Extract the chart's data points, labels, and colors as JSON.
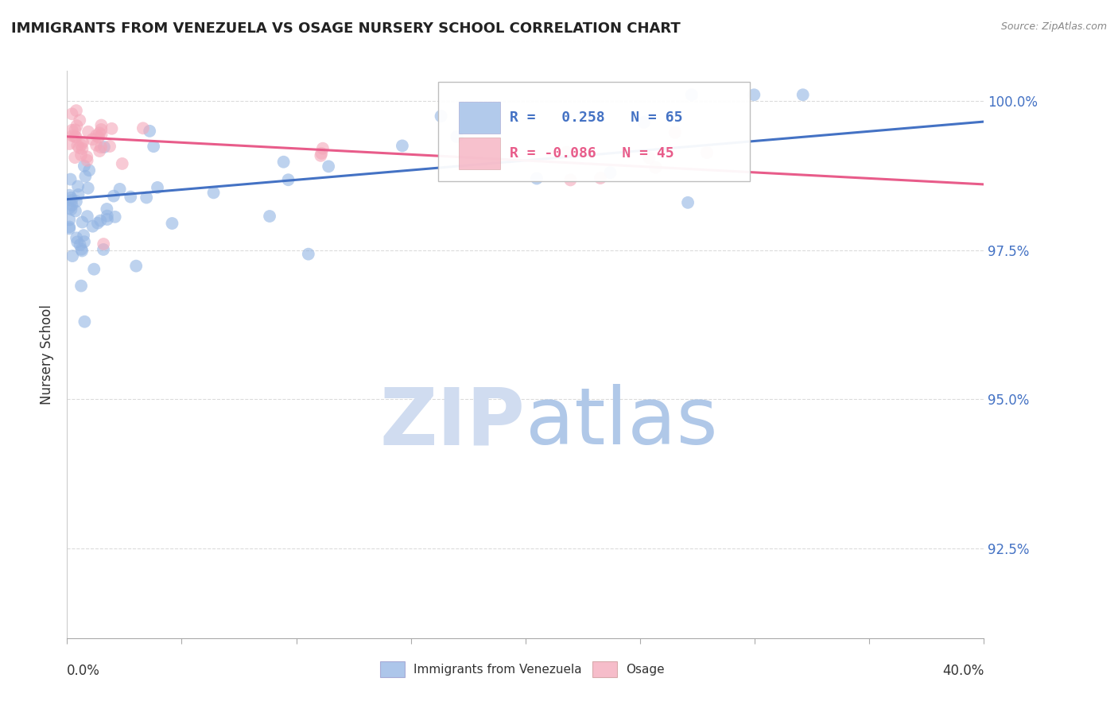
{
  "title": "IMMIGRANTS FROM VENEZUELA VS OSAGE NURSERY SCHOOL CORRELATION CHART",
  "source": "Source: ZipAtlas.com",
  "ylabel": "Nursery School",
  "legend_blue_r": "0.258",
  "legend_blue_n": "65",
  "legend_pink_r": "-0.086",
  "legend_pink_n": "45",
  "legend_blue_label": "Immigrants from Venezuela",
  "legend_pink_label": "Osage",
  "blue_color": "#92B4E3",
  "pink_color": "#F4A7B9",
  "blue_line_color": "#4472C4",
  "pink_line_color": "#E85C8A",
  "xlim_min": 0.0,
  "xlim_max": 0.4,
  "ylim_min": 0.91,
  "ylim_max": 1.005,
  "y_ticks": [
    0.925,
    0.95,
    0.975,
    1.0
  ],
  "y_tick_labels": [
    "92.5%",
    "95.0%",
    "97.5%",
    "100.0%"
  ],
  "blue_line_y0": 0.9835,
  "blue_line_y1": 0.9965,
  "pink_line_y0": 0.994,
  "pink_line_y1": 0.986,
  "background_color": "#FFFFFF",
  "grid_color": "#CCCCCC",
  "watermark_zip_color": "#D0DCF0",
  "watermark_atlas_color": "#B0C8E8"
}
